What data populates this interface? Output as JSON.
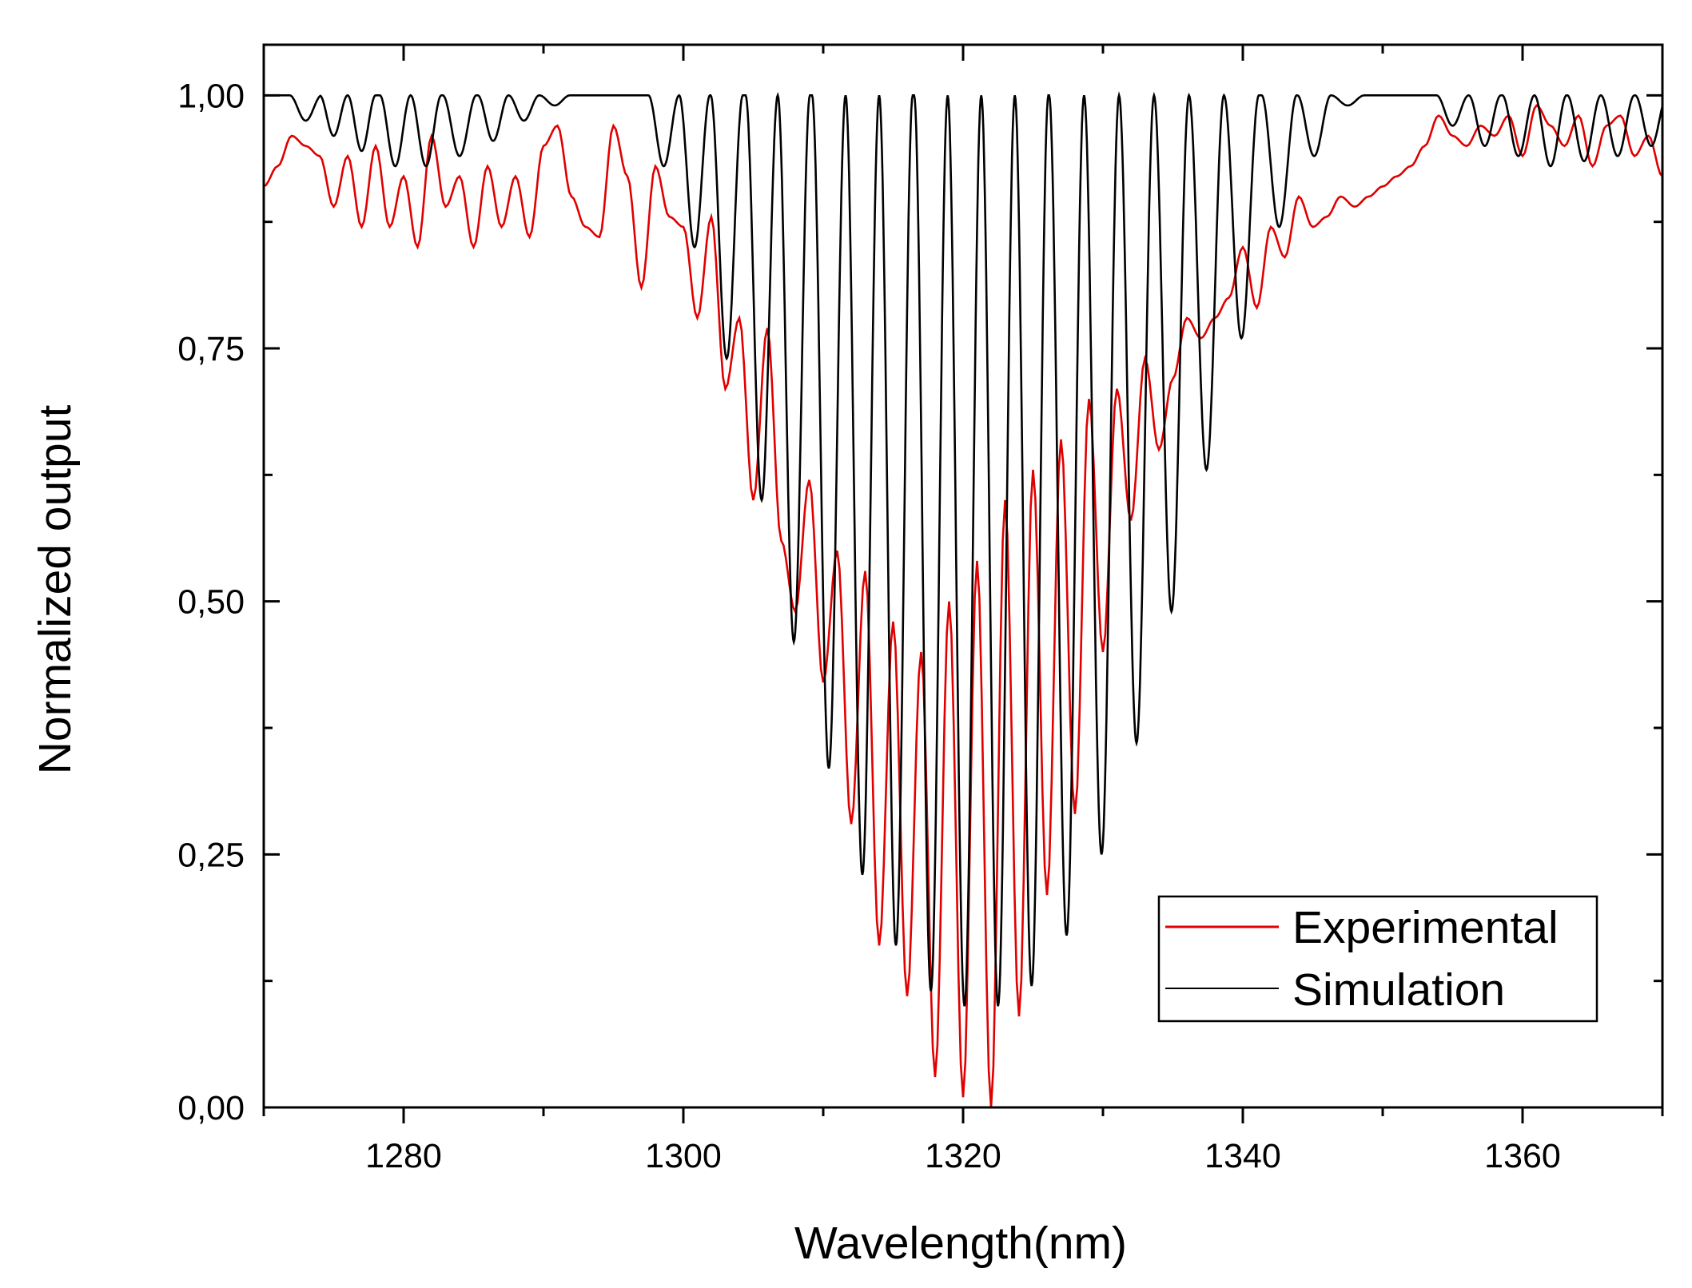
{
  "chart_data": {
    "type": "line",
    "title": "",
    "xlabel": "Wavelength(nm)",
    "ylabel": "Normalized output",
    "xlim": [
      1270,
      1370
    ],
    "ylim": [
      0,
      1.05
    ],
    "x_ticks": [
      1280,
      1300,
      1320,
      1340,
      1360
    ],
    "x_tick_labels": [
      "1280",
      "1300",
      "1320",
      "1340",
      "1360"
    ],
    "y_ticks": [
      0,
      0.25,
      0.5,
      0.75,
      1.0
    ],
    "y_tick_labels": [
      "0,00",
      "0,25",
      "0,50",
      "0,75",
      "1,00"
    ],
    "legend": {
      "position": "bottom-right",
      "entries": [
        {
          "label": "Experimental",
          "color": "#e00000"
        },
        {
          "label": "Simulation",
          "color": "#000000"
        }
      ]
    },
    "series": [
      {
        "name": "Experimental",
        "color": "#e00000",
        "x": [
          1270,
          1271,
          1272,
          1273,
          1274,
          1275,
          1276,
          1277,
          1278,
          1279,
          1280,
          1281,
          1282,
          1283,
          1284,
          1285,
          1286,
          1287,
          1288,
          1289,
          1290,
          1291,
          1292,
          1293,
          1294,
          1295,
          1296,
          1297,
          1298,
          1299,
          1300,
          1301,
          1302,
          1303,
          1304,
          1305,
          1306,
          1307,
          1308,
          1309,
          1310,
          1311,
          1312,
          1313,
          1314,
          1315,
          1316,
          1317,
          1318,
          1319,
          1320,
          1321,
          1322,
          1323,
          1324,
          1325,
          1326,
          1327,
          1328,
          1329,
          1330,
          1331,
          1332,
          1333,
          1334,
          1335,
          1336,
          1337,
          1338,
          1339,
          1340,
          1341,
          1342,
          1343,
          1344,
          1345,
          1346,
          1347,
          1348,
          1349,
          1350,
          1351,
          1352,
          1353,
          1354,
          1355,
          1356,
          1357,
          1358,
          1359,
          1360,
          1361,
          1362,
          1363,
          1364,
          1365,
          1366,
          1367,
          1368,
          1369,
          1370
        ],
        "y": [
          0.91,
          0.93,
          0.96,
          0.95,
          0.94,
          0.89,
          0.94,
          0.87,
          0.95,
          0.87,
          0.92,
          0.85,
          0.96,
          0.89,
          0.92,
          0.85,
          0.93,
          0.87,
          0.92,
          0.86,
          0.95,
          0.97,
          0.9,
          0.87,
          0.86,
          0.97,
          0.92,
          0.81,
          0.93,
          0.88,
          0.87,
          0.78,
          0.88,
          0.71,
          0.78,
          0.6,
          0.77,
          0.56,
          0.49,
          0.62,
          0.42,
          0.55,
          0.28,
          0.53,
          0.16,
          0.48,
          0.11,
          0.45,
          0.03,
          0.5,
          0.01,
          0.54,
          0.0,
          0.6,
          0.09,
          0.63,
          0.21,
          0.66,
          0.29,
          0.7,
          0.45,
          0.71,
          0.58,
          0.74,
          0.65,
          0.72,
          0.78,
          0.76,
          0.78,
          0.8,
          0.85,
          0.79,
          0.87,
          0.84,
          0.9,
          0.87,
          0.88,
          0.9,
          0.89,
          0.9,
          0.91,
          0.92,
          0.93,
          0.95,
          0.98,
          0.96,
          0.95,
          0.97,
          0.96,
          0.98,
          0.94,
          0.99,
          0.97,
          0.95,
          0.98,
          0.93,
          0.97,
          0.98,
          0.94,
          0.96,
          0.92
        ]
      },
      {
        "name": "Simulation",
        "color": "#000000",
        "x_start": 1270,
        "x_end": 1370,
        "dips": [
          {
            "x": 1273.0,
            "y": 0.975
          },
          {
            "x": 1275.0,
            "y": 0.96
          },
          {
            "x": 1277.0,
            "y": 0.945
          },
          {
            "x": 1279.4,
            "y": 0.93
          },
          {
            "x": 1281.6,
            "y": 0.93
          },
          {
            "x": 1284.0,
            "y": 0.94
          },
          {
            "x": 1286.4,
            "y": 0.955
          },
          {
            "x": 1288.6,
            "y": 0.975
          },
          {
            "x": 1290.8,
            "y": 0.99
          },
          {
            "x": 1298.6,
            "y": 0.93
          },
          {
            "x": 1300.8,
            "y": 0.85
          },
          {
            "x": 1303.1,
            "y": 0.74
          },
          {
            "x": 1305.6,
            "y": 0.6
          },
          {
            "x": 1307.9,
            "y": 0.46
          },
          {
            "x": 1310.4,
            "y": 0.335
          },
          {
            "x": 1312.8,
            "y": 0.23
          },
          {
            "x": 1315.2,
            "y": 0.16
          },
          {
            "x": 1317.7,
            "y": 0.115
          },
          {
            "x": 1320.1,
            "y": 0.1
          },
          {
            "x": 1322.5,
            "y": 0.1
          },
          {
            "x": 1324.9,
            "y": 0.12
          },
          {
            "x": 1327.4,
            "y": 0.17
          },
          {
            "x": 1329.9,
            "y": 0.25
          },
          {
            "x": 1332.4,
            "y": 0.36
          },
          {
            "x": 1334.9,
            "y": 0.49
          },
          {
            "x": 1337.4,
            "y": 0.63
          },
          {
            "x": 1339.9,
            "y": 0.76
          },
          {
            "x": 1342.6,
            "y": 0.87
          },
          {
            "x": 1345.1,
            "y": 0.94
          },
          {
            "x": 1347.5,
            "y": 0.99
          },
          {
            "x": 1355.0,
            "y": 0.97
          },
          {
            "x": 1357.3,
            "y": 0.95
          },
          {
            "x": 1359.7,
            "y": 0.94
          },
          {
            "x": 1362.0,
            "y": 0.93
          },
          {
            "x": 1364.4,
            "y": 0.935
          },
          {
            "x": 1366.8,
            "y": 0.94
          },
          {
            "x": 1369.2,
            "y": 0.95
          }
        ]
      }
    ]
  }
}
